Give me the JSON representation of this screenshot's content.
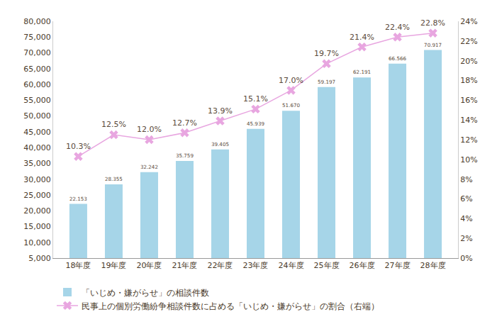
{
  "chart_data": {
    "type": "bar",
    "categories": [
      "18年度",
      "19年度",
      "20年度",
      "21年度",
      "22年度",
      "23年度",
      "24年度",
      "25年度",
      "26年度",
      "27年度",
      "28年度"
    ],
    "series": [
      {
        "name": "「いじめ・嫌がらせ」の相談件数",
        "type": "bar",
        "color": "#a6d5e8",
        "values": [
          22153,
          28355,
          32242,
          35759,
          39405,
          45939,
          51670,
          59197,
          62191,
          66566,
          70917
        ],
        "value_labels": [
          "22.153",
          "28.355",
          "32.242",
          "35.759",
          "39.405",
          "45.939",
          "51.670",
          "59.197",
          "62.191",
          "66.566",
          "70.917"
        ]
      },
      {
        "name": "民事上の個別労働紛争相談件数に占める「いじめ・嫌がらせ」の割合（右端）",
        "type": "line",
        "axis": "y2",
        "color": "#e8a6e0",
        "marker": "x",
        "values": [
          10.3,
          12.5,
          12.0,
          12.7,
          13.9,
          15.1,
          17.0,
          19.7,
          21.4,
          22.4,
          22.8
        ],
        "value_labels": [
          "10.3%",
          "12.5%",
          "12.0%",
          "12.7%",
          "13.9%",
          "15.1%",
          "17.0%",
          "19.7%",
          "21.4%",
          "22.4%",
          "22.8%"
        ]
      }
    ],
    "ylim": [
      5000,
      80000
    ],
    "yticks": [
      {
        "value": 5000,
        "label": "5,000"
      },
      {
        "value": 10000,
        "label": "10,000"
      },
      {
        "value": 15000,
        "label": "15,000"
      },
      {
        "value": 20000,
        "label": "20,000"
      },
      {
        "value": 25000,
        "label": "25,000"
      },
      {
        "value": 30000,
        "label": "30,000"
      },
      {
        "value": 35000,
        "label": "35,000"
      },
      {
        "value": 40000,
        "label": "40,000"
      },
      {
        "value": 45000,
        "label": "45,000"
      },
      {
        "value": 50000,
        "label": "50,000"
      },
      {
        "value": 55000,
        "label": "55,000"
      },
      {
        "value": 60000,
        "label": "60,000"
      },
      {
        "value": 65000,
        "label": "65,000"
      },
      {
        "value": 70000,
        "label": "70,000"
      },
      {
        "value": 75000,
        "label": "75,000"
      },
      {
        "value": 80000,
        "label": "80,000"
      }
    ],
    "y2lim": [
      0,
      24
    ],
    "y2ticks": [
      {
        "value": 0,
        "label": "0%"
      },
      {
        "value": 2,
        "label": "2%"
      },
      {
        "value": 4,
        "label": "4%"
      },
      {
        "value": 6,
        "label": "6%"
      },
      {
        "value": 8,
        "label": "8%"
      },
      {
        "value": 10,
        "label": "10%"
      },
      {
        "value": 12,
        "label": "12%"
      },
      {
        "value": 14,
        "label": "14%"
      },
      {
        "value": 16,
        "label": "16%"
      },
      {
        "value": 18,
        "label": "18%"
      },
      {
        "value": 20,
        "label": "20%"
      },
      {
        "value": 22,
        "label": "22%"
      },
      {
        "value": 24,
        "label": "24%"
      }
    ],
    "grid": false,
    "data_labels": true,
    "legend": "bottom"
  }
}
